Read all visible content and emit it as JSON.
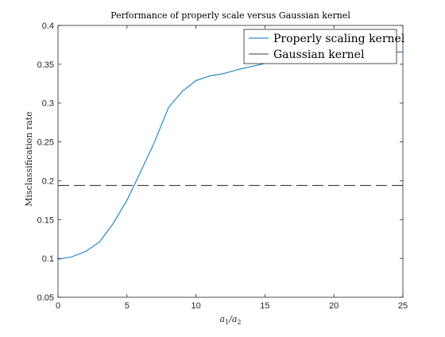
{
  "chart_data": {
    "type": "line",
    "title": "Performance of properly scale versus Gaussian kernel",
    "xlabel_main": "a",
    "xlabel_sub1": "1",
    "xlabel_sep": "/a",
    "xlabel_sub2": "2",
    "ylabel": "Misclassification rate",
    "xlim": [
      0,
      25
    ],
    "ylim": [
      0.05,
      0.4
    ],
    "xticks": [
      0,
      5,
      10,
      15,
      20,
      25
    ],
    "xtick_labels": [
      "0",
      "5",
      "10",
      "15",
      "20",
      "25"
    ],
    "yticks": [
      0.05,
      0.1,
      0.15,
      0.2,
      0.25,
      0.3,
      0.35,
      0.4
    ],
    "ytick_labels": [
      "0.05",
      "0.1",
      "0.15",
      "0.2",
      "0.25",
      "0.3",
      "0.35",
      "0.4"
    ],
    "grid": false,
    "legend_position": "top-right",
    "series": [
      {
        "name": "Properly scaling kernel",
        "color": "#0072BD",
        "style": "solid",
        "x": [
          0,
          1,
          2,
          3,
          4,
          5,
          6,
          7,
          8,
          9,
          10,
          11,
          12,
          13,
          14,
          15,
          16,
          17,
          18,
          19,
          20,
          21,
          22,
          23,
          24,
          25
        ],
        "y": [
          0.099,
          0.102,
          0.109,
          0.121,
          0.145,
          0.175,
          0.212,
          0.25,
          0.294,
          0.315,
          0.329,
          0.335,
          0.338,
          0.343,
          0.347,
          0.351,
          0.354,
          0.356,
          0.358,
          0.36,
          0.361,
          0.362,
          0.363,
          0.364,
          0.365,
          0.366
        ]
      },
      {
        "name": "Gaussian kernel",
        "color": "#000000",
        "style": "dashed",
        "x": [
          0,
          25
        ],
        "y": [
          0.194,
          0.194
        ]
      }
    ]
  }
}
